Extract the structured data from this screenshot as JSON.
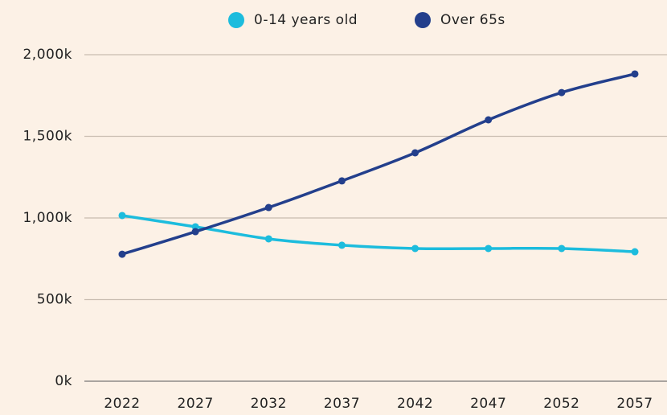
{
  "chart_data": {
    "type": "line",
    "categories": [
      "2022",
      "2027",
      "2032",
      "2037",
      "2042",
      "2047",
      "2052",
      "2057"
    ],
    "series": [
      {
        "name": "0-14 years old",
        "color": "#1cbcdd",
        "values": [
          1015,
          946,
          872,
          833,
          813,
          813,
          813,
          793
        ]
      },
      {
        "name": "Over 65s",
        "color": "#233f8c",
        "values": [
          778,
          916,
          1064,
          1227,
          1399,
          1601,
          1768,
          1882
        ]
      }
    ],
    "ylim": [
      0,
      2000
    ],
    "yticks": [
      {
        "value": 0,
        "label": "0k"
      },
      {
        "value": 500,
        "label": "500k"
      },
      {
        "value": 1000,
        "label": "1,000k"
      },
      {
        "value": 1500,
        "label": "1,500k"
      },
      {
        "value": 2000,
        "label": "2,000k"
      }
    ],
    "grid": true,
    "legend": "top"
  }
}
